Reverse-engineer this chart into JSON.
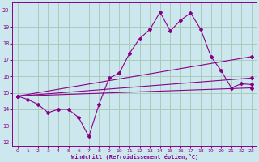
{
  "xlabel": "Windchill (Refroidissement éolien,°C)",
  "bg_color": "#cce8ee",
  "grid_color": "#aaccbb",
  "line_color": "#880088",
  "xlim": [
    -0.5,
    23.5
  ],
  "ylim": [
    11.8,
    20.5
  ],
  "yticks": [
    12,
    13,
    14,
    15,
    16,
    17,
    18,
    19,
    20
  ],
  "xticks": [
    0,
    1,
    2,
    3,
    4,
    5,
    6,
    7,
    8,
    9,
    10,
    11,
    12,
    13,
    14,
    15,
    16,
    17,
    18,
    19,
    20,
    21,
    22,
    23
  ],
  "line1_zigzag": {
    "x": [
      0,
      1,
      2,
      3,
      4,
      5,
      6,
      7,
      8,
      9,
      10,
      11,
      12,
      13,
      14,
      15,
      16,
      17,
      18,
      19,
      20,
      21,
      22,
      23
    ],
    "y": [
      14.8,
      14.6,
      14.3,
      13.8,
      14.0,
      14.0,
      13.5,
      12.35,
      14.3,
      15.9,
      16.2,
      17.4,
      18.3,
      18.85,
      19.9,
      18.75,
      19.4,
      19.85,
      18.85,
      17.2,
      16.35,
      15.3,
      15.55,
      15.5
    ]
  },
  "line2_upper": {
    "x": [
      0,
      23
    ],
    "y": [
      14.8,
      17.2
    ]
  },
  "line3_mid": {
    "x": [
      0,
      23
    ],
    "y": [
      14.8,
      15.9
    ]
  },
  "line4_lower": {
    "x": [
      0,
      23
    ],
    "y": [
      14.8,
      15.3
    ]
  }
}
